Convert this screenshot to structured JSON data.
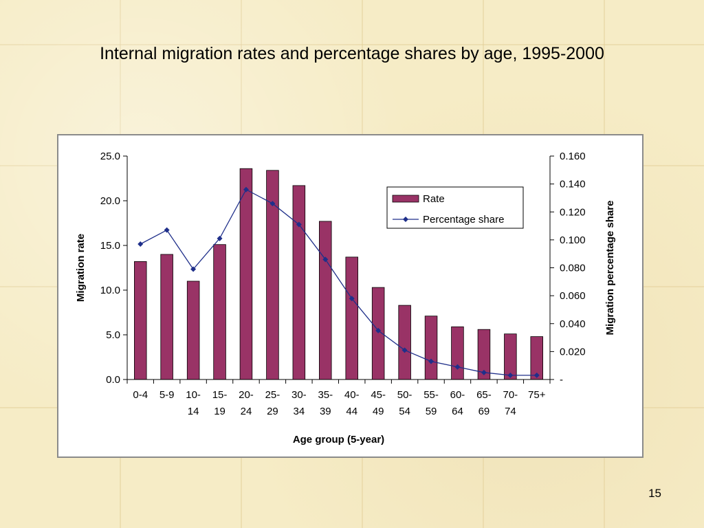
{
  "slide": {
    "title": "Internal migration rates and percentage shares by age, 1995-2000",
    "page_number": "15"
  },
  "chart_data": {
    "type": "bar",
    "categories": [
      "0-4",
      "5-9",
      "10-14",
      "15-19",
      "20-24",
      "25-29",
      "30-34",
      "35-39",
      "40-44",
      "45-49",
      "50-54",
      "55-59",
      "60-64",
      "65-69",
      "70-74",
      "75+"
    ],
    "category_lines": [
      [
        "0-4"
      ],
      [
        "5-9"
      ],
      [
        "10-",
        "14"
      ],
      [
        "15-",
        "19"
      ],
      [
        "20-",
        "24"
      ],
      [
        "25-",
        "29"
      ],
      [
        "30-",
        "34"
      ],
      [
        "35-",
        "39"
      ],
      [
        "40-",
        "44"
      ],
      [
        "45-",
        "49"
      ],
      [
        "50-",
        "54"
      ],
      [
        "55-",
        "59"
      ],
      [
        "60-",
        "64"
      ],
      [
        "65-",
        "69"
      ],
      [
        "70-",
        "74"
      ],
      [
        "75+"
      ]
    ],
    "series": [
      {
        "name": "Rate",
        "type": "bar",
        "axis": "left",
        "color": "#993366",
        "values": [
          13.2,
          14.0,
          11.0,
          15.1,
          23.6,
          23.4,
          21.7,
          17.7,
          13.7,
          10.3,
          8.3,
          7.1,
          5.9,
          5.6,
          5.1,
          4.8
        ]
      },
      {
        "name": "Percentage share",
        "type": "line",
        "axis": "right",
        "color": "#1f2f8a",
        "values": [
          0.097,
          0.107,
          0.079,
          0.101,
          0.136,
          0.126,
          0.111,
          0.086,
          0.058,
          0.035,
          0.021,
          0.013,
          0.009,
          0.005,
          0.003,
          0.003
        ]
      }
    ],
    "xlabel": "Age group (5-year)",
    "ylabel": "Migration rate",
    "y2label": "Migration percentage share",
    "ylim": [
      0,
      25
    ],
    "y2lim": [
      0,
      0.16
    ],
    "yticks": [
      "0.0",
      "5.0",
      "10.0",
      "15.0",
      "20.0",
      "25.0"
    ],
    "y2ticks": [
      "-",
      "0.020",
      "0.040",
      "0.060",
      "0.080",
      "0.100",
      "0.120",
      "0.140",
      "0.160"
    ],
    "legend_position": "top-right",
    "grid": false
  }
}
